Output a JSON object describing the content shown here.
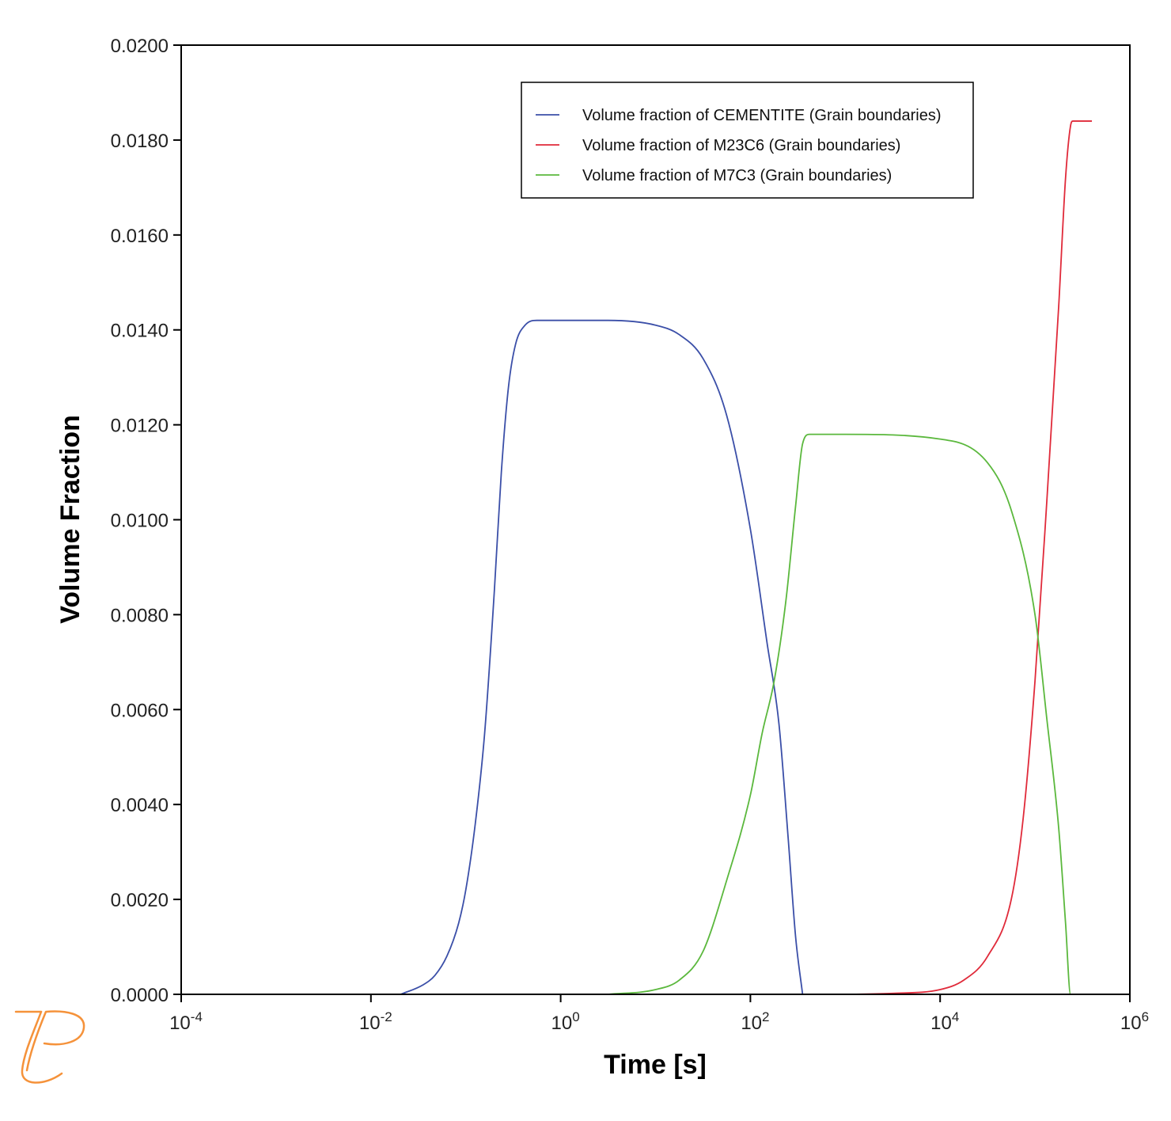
{
  "chart_data": {
    "type": "line",
    "xlabel": "Time [s]",
    "ylabel": "Volume Fraction",
    "xscale": "log",
    "xlim": [
      0.0001,
      1000000
    ],
    "ylim": [
      0,
      0.02
    ],
    "grid": false,
    "legend_position": "top-right",
    "x_ticks": [
      {
        "value": 0.0001,
        "base": "10",
        "exp": "-4"
      },
      {
        "value": 0.01,
        "base": "10",
        "exp": "-2"
      },
      {
        "value": 1,
        "base": "10",
        "exp": "0"
      },
      {
        "value": 100,
        "base": "10",
        "exp": "2"
      },
      {
        "value": 10000,
        "base": "10",
        "exp": "4"
      },
      {
        "value": 1000000,
        "base": "10",
        "exp": "6"
      }
    ],
    "y_ticks": [
      {
        "value": 0.0,
        "label": "0.0000"
      },
      {
        "value": 0.002,
        "label": "0.0020"
      },
      {
        "value": 0.004,
        "label": "0.0040"
      },
      {
        "value": 0.006,
        "label": "0.0060"
      },
      {
        "value": 0.008,
        "label": "0.0080"
      },
      {
        "value": 0.01,
        "label": "0.0100"
      },
      {
        "value": 0.012,
        "label": "0.0120"
      },
      {
        "value": 0.014,
        "label": "0.0140"
      },
      {
        "value": 0.016,
        "label": "0.0160"
      },
      {
        "value": 0.018,
        "label": "0.0180"
      },
      {
        "value": 0.02,
        "label": "0.0200"
      }
    ],
    "series": [
      {
        "name": "Volume fraction of CEMENTITE (Grain boundaries)",
        "color": "#3b4fa8",
        "points": [
          [
            0.0206,
            0.0
          ],
          [
            0.0355,
            0.0002
          ],
          [
            0.0473,
            0.0004
          ],
          [
            0.0631,
            0.0008
          ],
          [
            0.0841,
            0.0015
          ],
          [
            0.1,
            0.0022
          ],
          [
            0.126,
            0.0036
          ],
          [
            0.158,
            0.0055
          ],
          [
            0.2,
            0.0085
          ],
          [
            0.237,
            0.011
          ],
          [
            0.282,
            0.0128
          ],
          [
            0.335,
            0.0137
          ],
          [
            0.422,
            0.0141
          ],
          [
            0.562,
            0.0142
          ],
          [
            1.0,
            0.0142
          ],
          [
            3.16,
            0.0142
          ],
          [
            10.0,
            0.0141
          ],
          [
            17.8,
            0.0139
          ],
          [
            31.6,
            0.0134
          ],
          [
            56.2,
            0.0122
          ],
          [
            100,
            0.0098
          ],
          [
            150,
            0.0074
          ],
          [
            200,
            0.0057
          ],
          [
            250,
            0.0033
          ],
          [
            300,
            0.0012
          ],
          [
            355,
            0.0
          ]
        ]
      },
      {
        "name": "Volume fraction of M23C6 (Grain boundaries)",
        "color": "#e02a3a",
        "points": [
          [
            1000,
            0.0
          ],
          [
            3162,
            2e-05
          ],
          [
            10000,
            0.0001
          ],
          [
            17783,
            0.0003
          ],
          [
            31623,
            0.0008
          ],
          [
            56234,
            0.002
          ],
          [
            74989,
            0.0037
          ],
          [
            100000,
            0.0066
          ],
          [
            133352,
            0.0104
          ],
          [
            177828,
            0.0145
          ],
          [
            210000,
            0.0172
          ],
          [
            237137,
            0.0183
          ],
          [
            251189,
            0.0184
          ],
          [
            398107,
            0.0184
          ]
        ]
      },
      {
        "name": "Volume fraction of M7C3 (Grain boundaries)",
        "color": "#5bb83d",
        "points": [
          [
            3.16,
            0.0
          ],
          [
            10.0,
            0.0001
          ],
          [
            17.8,
            0.0003
          ],
          [
            31.6,
            0.0009
          ],
          [
            56.2,
            0.0024
          ],
          [
            100,
            0.0042
          ],
          [
            133,
            0.0055
          ],
          [
            178,
            0.0066
          ],
          [
            237,
            0.0083
          ],
          [
            300,
            0.0103
          ],
          [
            355,
            0.0116
          ],
          [
            420,
            0.0118
          ],
          [
            1000,
            0.0118
          ],
          [
            10000,
            0.0117
          ],
          [
            31623,
            0.0112
          ],
          [
            56234,
            0.0102
          ],
          [
            100000,
            0.008
          ],
          [
            133352,
            0.0058
          ],
          [
            177828,
            0.0035
          ],
          [
            210000,
            0.0015
          ],
          [
            237137,
            0.0
          ],
          [
            398107,
            0.0
          ]
        ]
      }
    ]
  }
}
